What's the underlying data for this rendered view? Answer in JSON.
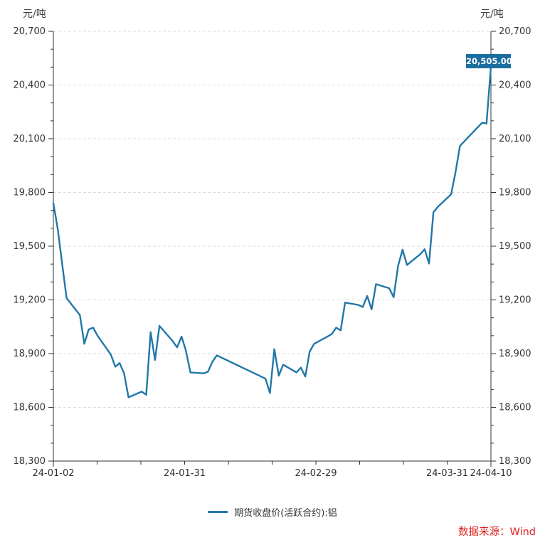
{
  "page": {
    "background": "#ffffff"
  },
  "axes": {
    "unit_left": "元/吨",
    "unit_right": "元/吨"
  },
  "legend": {
    "label": "期货收盘价(活跃合约):铝"
  },
  "source": {
    "label": "数据来源：Wind"
  },
  "badge": {
    "value": "20,505.00"
  },
  "colors": {
    "line": "#2177A8",
    "badge_bg": "#1A6E9F",
    "badge_text": "#FFFFFF",
    "grid": "#DCDCDC",
    "axis": "#333333",
    "text": "#333333",
    "source_red": "#E02020"
  },
  "chart_data": {
    "type": "line",
    "title": "",
    "xlabel": "",
    "ylabel": "元/吨",
    "legend_position": "bottom",
    "grid": true,
    "ylim": [
      18300,
      20700
    ],
    "y_tick_step": 300,
    "y_minor_step": 100,
    "y_tick_labels": [
      "18,300",
      "18,600",
      "18,900",
      "19,200",
      "19,500",
      "19,800",
      "20,100",
      "20,400",
      "20,700"
    ],
    "x_range_days": [
      0,
      99
    ],
    "x_tick_count": 11,
    "x_labels": [
      {
        "text": "24-01-02",
        "tick": 0
      },
      {
        "text": "24-01-31",
        "tick": 3
      },
      {
        "text": "24-02-29",
        "tick": 6
      },
      {
        "text": "24-03-31",
        "tick": 9
      },
      {
        "text": "24-04-10",
        "tick": 10
      }
    ],
    "last_value": 20505.0,
    "series": [
      {
        "name": "期货收盘价(活跃合约):铝",
        "points": [
          [
            0,
            19740
          ],
          [
            1,
            19595
          ],
          [
            2,
            19400
          ],
          [
            3,
            19210
          ],
          [
            6,
            19115
          ],
          [
            7,
            18955
          ],
          [
            8,
            19035
          ],
          [
            9,
            19045
          ],
          [
            10,
            19000
          ],
          [
            13,
            18895
          ],
          [
            14,
            18827
          ],
          [
            15,
            18847
          ],
          [
            16,
            18790
          ],
          [
            17,
            18656
          ],
          [
            20,
            18688
          ],
          [
            21,
            18670
          ],
          [
            22,
            19020
          ],
          [
            23,
            18865
          ],
          [
            24,
            19055
          ],
          [
            27,
            18970
          ],
          [
            28,
            18935
          ],
          [
            29,
            18995
          ],
          [
            30,
            18915
          ],
          [
            31,
            18795
          ],
          [
            34,
            18790
          ],
          [
            35,
            18800
          ],
          [
            36,
            18855
          ],
          [
            37,
            18890
          ],
          [
            48,
            18760
          ],
          [
            49,
            18680
          ],
          [
            50,
            18925
          ],
          [
            51,
            18777
          ],
          [
            52,
            18838
          ],
          [
            55,
            18795
          ],
          [
            56,
            18822
          ],
          [
            57,
            18772
          ],
          [
            58,
            18912
          ],
          [
            59,
            18955
          ],
          [
            62,
            18995
          ],
          [
            63,
            19010
          ],
          [
            64,
            19045
          ],
          [
            65,
            19030
          ],
          [
            66,
            19185
          ],
          [
            69,
            19172
          ],
          [
            70,
            19160
          ],
          [
            71,
            19222
          ],
          [
            72,
            19147
          ],
          [
            73,
            19288
          ],
          [
            76,
            19265
          ],
          [
            77,
            19215
          ],
          [
            78,
            19390
          ],
          [
            79,
            19480
          ],
          [
            80,
            19395
          ],
          [
            83,
            19455
          ],
          [
            84,
            19483
          ],
          [
            85,
            19403
          ],
          [
            86,
            19690
          ],
          [
            87,
            19720
          ],
          [
            90,
            19790
          ],
          [
            91,
            19915
          ],
          [
            92,
            20060
          ],
          [
            97,
            20190
          ],
          [
            98,
            20185
          ],
          [
            99,
            20505
          ]
        ]
      }
    ]
  }
}
